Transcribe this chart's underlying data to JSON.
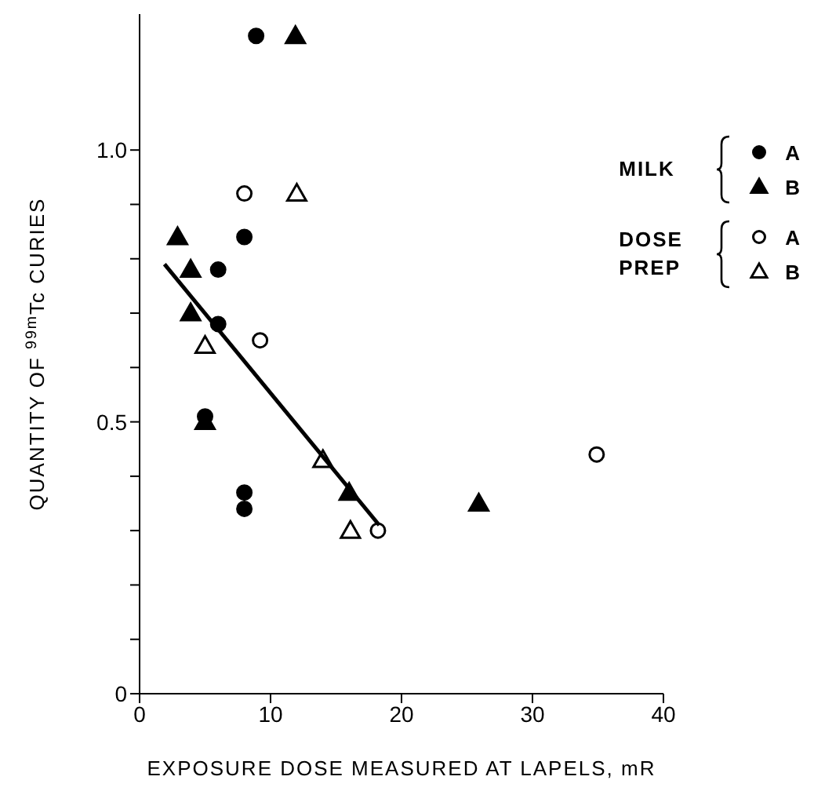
{
  "chart_data": {
    "type": "scatter",
    "xlabel": "EXPOSURE DOSE MEASURED AT LAPELS, mR",
    "ylabel": "QUANTITY OF $^{99m}$Tc CURIES",
    "annotations": [
      "MILK",
      "DOSE PREP"
    ],
    "xlim": [
      0,
      40
    ],
    "xticks": [
      0,
      10,
      20,
      30,
      40
    ],
    "ylim": [
      0,
      1.25
    ],
    "yticks": [
      0,
      {
        "value": 0.1,
        "label": null
      },
      {
        "value": 0.2,
        "label": null
      },
      {
        "value": 0.3,
        "label": null
      },
      {
        "value": 0.4,
        "label": null
      },
      0.5,
      {
        "value": 0.6,
        "label": null
      },
      {
        "value": 0.7,
        "label": null
      },
      {
        "value": 0.8,
        "label": null
      },
      {
        "value": 0.9,
        "label": null
      },
      {
        "value": 1.0,
        "label": "1.0"
      }
    ],
    "legend": "top right",
    "series": [
      {
        "name": "A",
        "color": "#000000",
        "marker": "circle",
        "x": [
          8.9,
          8.0,
          6.0,
          6.0,
          5.0,
          8.0,
          8.0
        ],
        "values": [
          1.21,
          0.84,
          0.78,
          0.68,
          0.51,
          0.37,
          0.34
        ]
      },
      {
        "name": "B",
        "color": "#000000",
        "marker": "triangle",
        "x": [
          11.9,
          2.9,
          3.9,
          3.9,
          5.0,
          16.0,
          25.9
        ],
        "values": [
          1.21,
          0.84,
          0.78,
          0.7,
          0.5,
          0.37,
          0.35
        ]
      },
      {
        "name": "A",
        "color": "#ffffff",
        "marker": "circle",
        "x": [
          8.0,
          9.2,
          18.2,
          34.9
        ],
        "values": [
          0.92,
          0.65,
          0.3,
          0.44
        ]
      },
      {
        "name": "B",
        "color": "#ffffff",
        "marker": "triangle",
        "x": [
          12.0,
          5.0,
          14.0,
          16.1
        ],
        "values": [
          0.92,
          0.64,
          0.43,
          0.3
        ]
      },
      {
        "type": "line",
        "color": "#000000",
        "marker": "none",
        "x": [
          1.9,
          18.3
        ],
        "values": [
          0.79,
          0.31
        ]
      }
    ]
  }
}
